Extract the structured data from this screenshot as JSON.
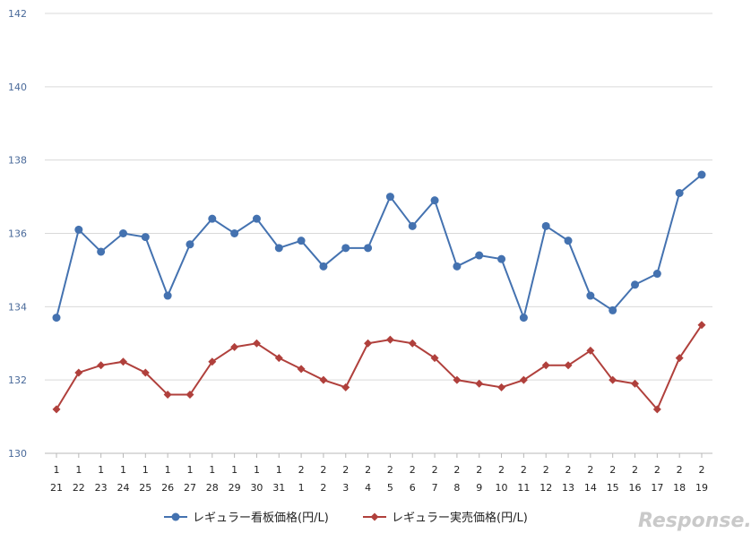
{
  "chart_data": {
    "type": "line",
    "categories": [
      [
        "1",
        "21"
      ],
      [
        "1",
        "22"
      ],
      [
        "1",
        "23"
      ],
      [
        "1",
        "24"
      ],
      [
        "1",
        "25"
      ],
      [
        "1",
        "26"
      ],
      [
        "1",
        "27"
      ],
      [
        "1",
        "28"
      ],
      [
        "1",
        "29"
      ],
      [
        "1",
        "30"
      ],
      [
        "1",
        "31"
      ],
      [
        "2",
        "1"
      ],
      [
        "2",
        "2"
      ],
      [
        "2",
        "3"
      ],
      [
        "2",
        "4"
      ],
      [
        "2",
        "5"
      ],
      [
        "2",
        "6"
      ],
      [
        "2",
        "7"
      ],
      [
        "2",
        "8"
      ],
      [
        "2",
        "9"
      ],
      [
        "2",
        "10"
      ],
      [
        "2",
        "11"
      ],
      [
        "2",
        "12"
      ],
      [
        "2",
        "13"
      ],
      [
        "2",
        "14"
      ],
      [
        "2",
        "15"
      ],
      [
        "2",
        "16"
      ],
      [
        "2",
        "17"
      ],
      [
        "2",
        "18"
      ],
      [
        "2",
        "19"
      ]
    ],
    "ylim": [
      130,
      142
    ],
    "yticks": [
      130,
      132,
      134,
      136,
      138,
      140,
      142
    ],
    "grid": true,
    "legend_position": "bottom",
    "series": [
      {
        "name": "レギュラー看板価格(円/L)",
        "color": "#4472b0",
        "marker": "circle",
        "values": [
          133.7,
          136.1,
          135.5,
          136.0,
          135.9,
          134.3,
          135.7,
          136.4,
          136.0,
          136.4,
          135.6,
          135.8,
          135.1,
          135.6,
          135.6,
          137.0,
          136.2,
          136.9,
          135.1,
          135.4,
          135.3,
          133.7,
          136.2,
          135.8,
          134.3,
          133.9,
          134.6,
          134.9,
          137.1,
          137.6
        ]
      },
      {
        "name": "レギュラー実売価格(円/L)",
        "color": "#b0403c",
        "marker": "diamond",
        "values": [
          131.2,
          132.2,
          132.4,
          132.5,
          132.2,
          131.6,
          131.6,
          132.5,
          132.9,
          133.0,
          132.6,
          132.3,
          132.0,
          131.8,
          133.0,
          133.1,
          133.0,
          132.6,
          132.0,
          131.9,
          131.8,
          132.0,
          132.4,
          132.4,
          132.8,
          132.0,
          131.9,
          131.2,
          132.6,
          133.5
        ]
      }
    ]
  },
  "watermark": "Response."
}
